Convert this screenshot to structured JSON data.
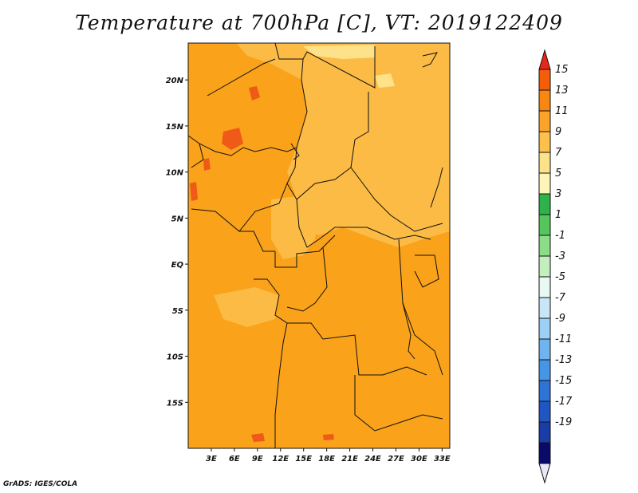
{
  "title": "Temperature at 700hPa [C], VT: 2019122409",
  "credit": "GrADS: IGES/COLA",
  "map": {
    "lon_range": [
      0,
      34
    ],
    "lat_range": [
      -20,
      24
    ],
    "lat_ticks": [
      {
        "value": 20,
        "label": "20N"
      },
      {
        "value": 15,
        "label": "15N"
      },
      {
        "value": 10,
        "label": "10N"
      },
      {
        "value": 5,
        "label": "5N"
      },
      {
        "value": 0,
        "label": "EQ"
      },
      {
        "value": -5,
        "label": "5S"
      },
      {
        "value": -10,
        "label": "10S"
      },
      {
        "value": -15,
        "label": "15S"
      }
    ],
    "lon_ticks": [
      {
        "value": 3,
        "label": "3E"
      },
      {
        "value": 6,
        "label": "6E"
      },
      {
        "value": 9,
        "label": "9E"
      },
      {
        "value": 12,
        "label": "12E"
      },
      {
        "value": 15,
        "label": "15E"
      },
      {
        "value": 18,
        "label": "18E"
      },
      {
        "value": 21,
        "label": "21E"
      },
      {
        "value": 24,
        "label": "24E"
      },
      {
        "value": 27,
        "label": "27E"
      },
      {
        "value": 30,
        "label": "30E"
      },
      {
        "value": 33,
        "label": "33E"
      }
    ]
  },
  "colorbar": {
    "labels": [
      "15",
      "13",
      "11",
      "9",
      "7",
      "5",
      "3",
      "1",
      "-1",
      "-3",
      "-5",
      "-7",
      "-9",
      "-11",
      "-13",
      "-15",
      "-17",
      "-19"
    ],
    "colors": [
      "#e8261a",
      "#f55d0b",
      "#f9860e",
      "#fca42a",
      "#fdc04c",
      "#fde28a",
      "#fef6b9",
      "#2fb24a",
      "#54c65c",
      "#8ddc87",
      "#c2efbd",
      "#e8f8f3",
      "#c8e6f8",
      "#9cd0f4",
      "#6fb4ee",
      "#4596e4",
      "#2e74d6",
      "#1f56c4",
      "#1a3ca6",
      "#0a0a6a",
      "#e8e8f8"
    ]
  }
}
